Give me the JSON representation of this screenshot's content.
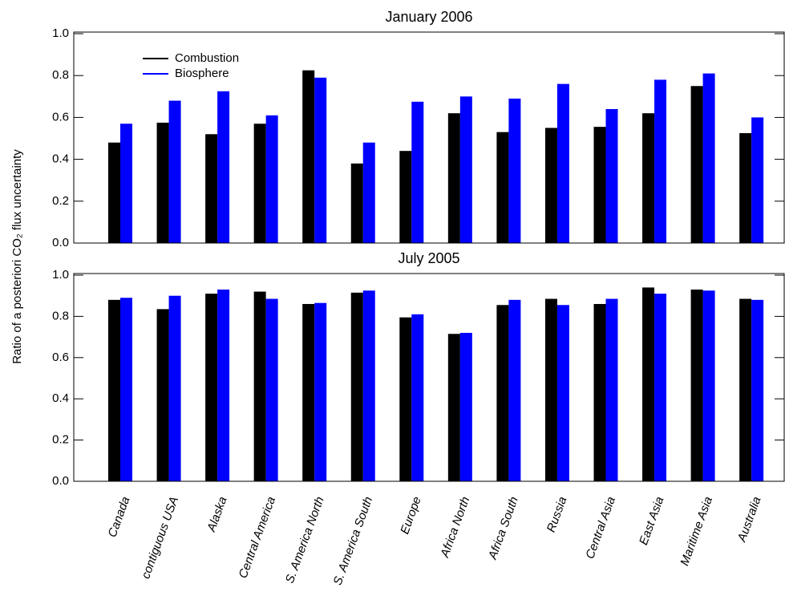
{
  "chart_data": [
    {
      "type": "bar",
      "title": "January 2006",
      "ylabel": "Ratio of a posteriori CO₂ flux uncertainty",
      "ylim": [
        0,
        1
      ],
      "yticks": [
        {
          "value": 0,
          "label": "0.0"
        },
        0.2,
        0.4,
        0.6,
        0.8,
        {
          "value": 1,
          "label": "1.0"
        }
      ],
      "legend": "upper left",
      "series": [
        {
          "name": "Combustion",
          "color": "#000000",
          "values": [
            0.48,
            0.575,
            0.52,
            0.57,
            0.825,
            0.38,
            0.44,
            0.62,
            0.53,
            0.55,
            0.555,
            0.62,
            0.75,
            0.525
          ]
        },
        {
          "name": "Biosphere",
          "color": "#0000ff",
          "values": [
            0.57,
            0.68,
            0.725,
            0.61,
            0.79,
            0.48,
            0.675,
            0.7,
            0.69,
            0.76,
            0.64,
            0.78,
            0.81,
            0.6
          ]
        }
      ]
    },
    {
      "type": "bar",
      "title": "July 2005",
      "categories": [
        "Canada",
        "contiguous USA",
        "Alaska",
        "Central America",
        "S. America North",
        "S. America South",
        "Europe",
        "Africa North",
        "Africa South",
        "Russia",
        "Central Asia",
        "East Asia",
        "Maritime Asia",
        "Australia"
      ],
      "ylim": [
        0,
        1
      ],
      "yticks": [
        {
          "value": 0,
          "label": "0.0"
        },
        0.2,
        0.4,
        0.6,
        0.8,
        {
          "value": 1,
          "label": "1.0"
        }
      ],
      "series": [
        {
          "color": "#000000",
          "values": [
            0.88,
            0.835,
            0.91,
            0.92,
            0.86,
            0.915,
            0.795,
            0.715,
            0.855,
            0.885,
            0.86,
            0.94,
            0.93,
            0.885
          ]
        },
        {
          "color": "#0000ff",
          "values": [
            0.89,
            0.9,
            0.93,
            0.885,
            0.865,
            0.925,
            0.81,
            0.72,
            0.88,
            0.855,
            0.885,
            0.91,
            0.925,
            0.88
          ]
        }
      ]
    }
  ]
}
